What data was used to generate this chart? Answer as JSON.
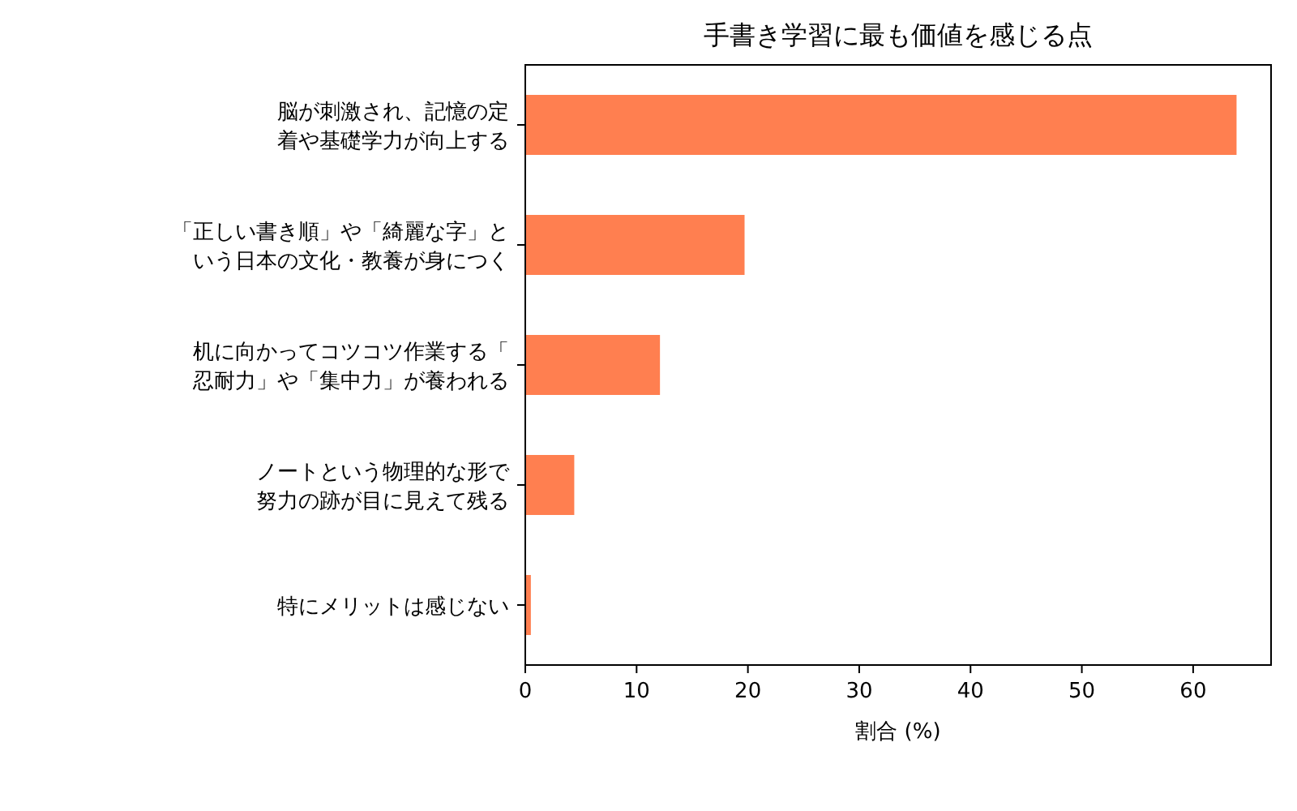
{
  "chart_data": {
    "type": "bar",
    "orientation": "horizontal",
    "title": "手書き学習に最も価値を感じる点",
    "xlabel": "割合 (%)",
    "categories": [
      "脳が刺激され、記憶の定着や基礎学力が向上する",
      "「正しい書き順」や「綺麗な字」という日本の文化・教養が身につく",
      "机に向かってコツコツ作業する「忍耐力」や「集中力」が養われる",
      "ノートという物理的な形で努力の跡が目に見えて残る",
      "特にメリットは感じない"
    ],
    "values": [
      63.9,
      19.7,
      12.1,
      4.4,
      0.5
    ],
    "color": "#ff7f50",
    "xlim": [
      0,
      67
    ],
    "xticks": [
      0,
      10,
      20,
      30,
      40,
      50,
      60
    ],
    "grid": false
  }
}
